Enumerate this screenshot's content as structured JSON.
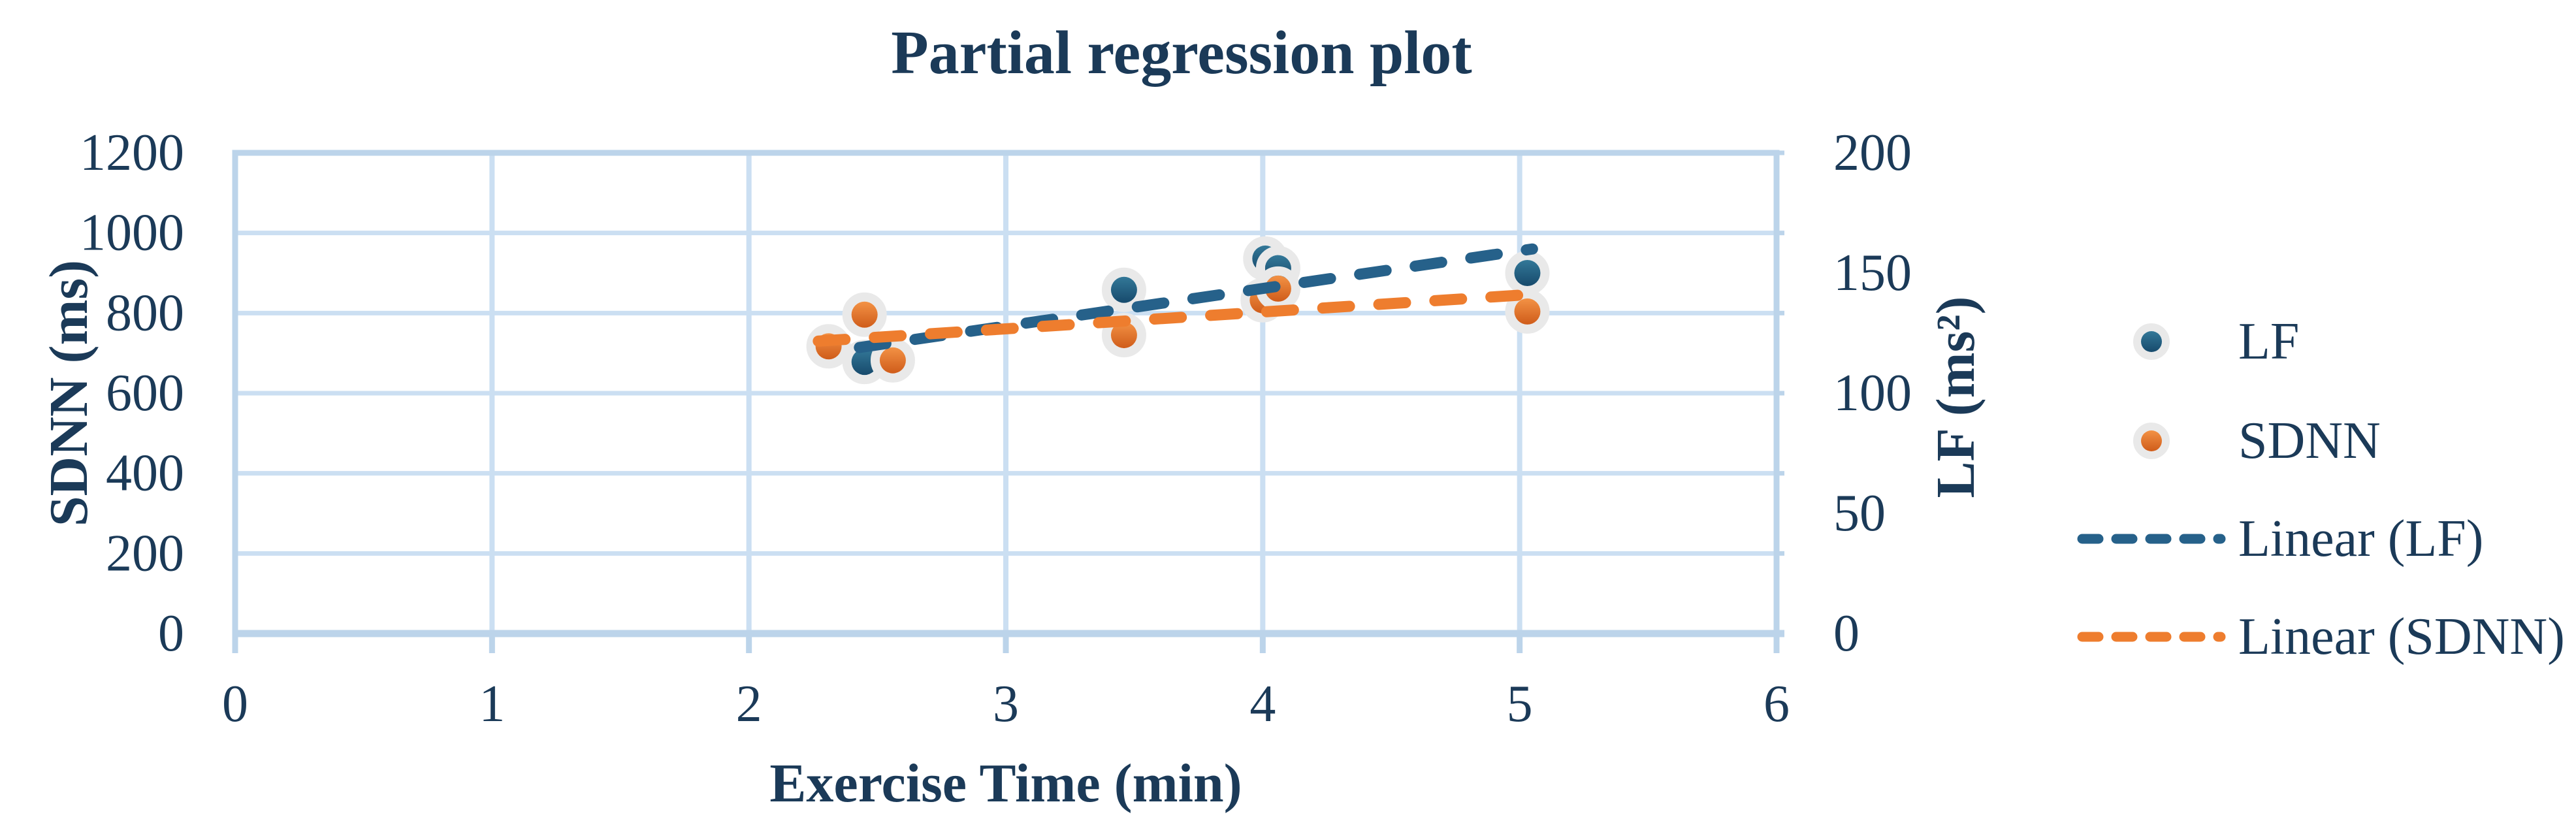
{
  "title": "Partial regression plot",
  "colors": {
    "text_navy": "#1b3a58",
    "gridline": "#cbdff2",
    "plot_border": "#bcd4ea",
    "lf_blue": "#26618a",
    "lf_blue_gradient_top": "#337898",
    "lf_blue_gradient_bottom": "#174a6c",
    "sdnn_orange": "#ee7d2e",
    "sdnn_orange_gradient_top": "#f39245",
    "sdnn_orange_gradient_bottom": "#cf5c1a",
    "marker_halo": "#e9e9e9",
    "background": "#ffffff"
  },
  "chart_data": {
    "type": "scatter",
    "title": "Partial regression plot",
    "grid": true,
    "x_axis": {
      "label": "Exercise Time (min)",
      "min": 0,
      "max": 6,
      "ticks": [
        "0",
        "1",
        "2",
        "3",
        "4",
        "5",
        "6"
      ],
      "tick_values": [
        0,
        1,
        2,
        3,
        4,
        5,
        6
      ]
    },
    "y_axis_left": {
      "label": "SDNN (ms)",
      "min": 0,
      "max": 1200,
      "ticks": [
        "0",
        "200",
        "400",
        "600",
        "800",
        "1000",
        "1200"
      ],
      "tick_values": [
        0,
        200,
        400,
        600,
        800,
        1000,
        1200
      ]
    },
    "y_axis_right": {
      "label": "LF (ms²)",
      "min": 0,
      "max": 200,
      "ticks": [
        "0",
        "50",
        "100",
        "150",
        "200"
      ],
      "tick_values": [
        0,
        50,
        100,
        150,
        200
      ]
    },
    "series": [
      {
        "name": "LF",
        "axis": "right",
        "color": "#26618a",
        "points": [
          [
            2.45,
            113
          ],
          [
            3.46,
            143
          ],
          [
            4.01,
            156
          ],
          [
            4.06,
            152
          ],
          [
            5.03,
            150
          ]
        ]
      },
      {
        "name": "SDNN",
        "axis": "left",
        "color": "#ee7d2e",
        "points": [
          [
            2.31,
            717
          ],
          [
            2.45,
            796
          ],
          [
            2.56,
            682
          ],
          [
            3.46,
            745
          ],
          [
            4.0,
            832
          ],
          [
            4.06,
            861
          ],
          [
            5.03,
            804
          ]
        ]
      }
    ],
    "trendlines": [
      {
        "name": "Linear (LF)",
        "axis": "right",
        "color": "#26618a",
        "from": [
          2.43,
          119
        ],
        "to": [
          5.05,
          160
        ]
      },
      {
        "name": "Linear (SDNN)",
        "axis": "left",
        "color": "#ee7d2e",
        "from": [
          2.27,
          730
        ],
        "to": [
          5.03,
          846
        ]
      }
    ],
    "legend": {
      "position": "right",
      "items": [
        {
          "label": "LF",
          "marker": "dot",
          "series": "LF"
        },
        {
          "label": "SDNN",
          "marker": "dot",
          "series": "SDNN"
        },
        {
          "label": "Linear (LF)",
          "marker": "dash",
          "series": "LF"
        },
        {
          "label": "Linear (SDNN)",
          "marker": "dash",
          "series": "SDNN"
        }
      ]
    }
  }
}
